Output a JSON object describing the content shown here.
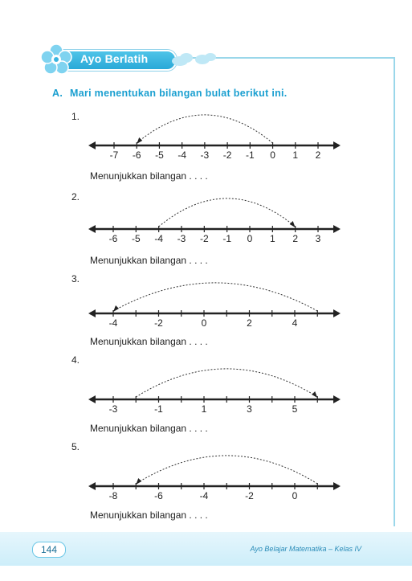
{
  "banner": {
    "title": "Ayo Berlatih",
    "icons": [
      "flower-icon",
      "cloud-icon"
    ]
  },
  "section": {
    "letter": "A.",
    "title": "Mari menentukan bilangan bulat berikut ini."
  },
  "answer_text": "Menunjukkan bilangan  . . . .",
  "problems": [
    {
      "number": "1.",
      "ticks": [
        "-7",
        "-6",
        "-5",
        "-4",
        "-3",
        "-2",
        "-1",
        "0",
        "1",
        "2"
      ],
      "arc_from": 0,
      "arc_to": -6
    },
    {
      "number": "2.",
      "ticks": [
        "-6",
        "-5",
        "-4",
        "-3",
        "-2",
        "-1",
        "0",
        "1",
        "2",
        "3"
      ],
      "arc_from": -4,
      "arc_to": 2
    },
    {
      "number": "3.",
      "ticks": [
        "-4",
        "-2",
        "0",
        "2",
        "4"
      ],
      "arc_from": 5,
      "arc_to": -4
    },
    {
      "number": "4.",
      "ticks": [
        "-3",
        "-1",
        "1",
        "3",
        "5"
      ],
      "arc_from": -2,
      "arc_to": 6
    },
    {
      "number": "5.",
      "ticks": [
        "-8",
        "-6",
        "-4",
        "-2",
        "0"
      ],
      "arc_from": 1,
      "arc_to": -7
    }
  ],
  "footer": {
    "page": "144",
    "book": "Ayo Belajar Matematika – Kelas IV"
  },
  "colors": {
    "accent": "#1a9fd0",
    "frame": "#9ad7ea"
  }
}
